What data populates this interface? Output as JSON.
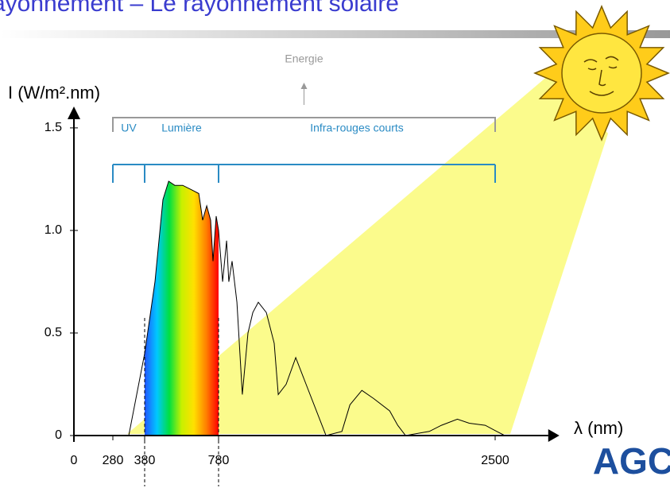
{
  "title": "ayonnement – Le rayonnement solaire",
  "logo": "AGC",
  "chart_data": {
    "type": "line",
    "x_label": "λ (nm)",
    "y_label": "I (W/m².nm)",
    "x": [
      330,
      355,
      380,
      436,
      479,
      510,
      543,
      586,
      630,
      673,
      694,
      716,
      737,
      750,
      767,
      780,
      805,
      830,
      844,
      864,
      894,
      928,
      963,
      993,
      1027,
      1077,
      1126,
      1151,
      1200,
      1260,
      1324,
      1448,
      1547,
      1597,
      1671,
      1745,
      1844,
      1894,
      1943,
      2091,
      2166,
      2265,
      2339,
      2438,
      2510,
      2560
    ],
    "series": [
      {
        "color": "#000000",
        "values": [
          0,
          0.2,
          0.4,
          0.75,
          1.15,
          1.24,
          1.22,
          1.22,
          1.2,
          1.18,
          1.05,
          1.12,
          1.05,
          0.85,
          1.07,
          1.0,
          0.75,
          0.95,
          0.75,
          0.85,
          0.65,
          0.2,
          0.5,
          0.6,
          0.65,
          0.6,
          0.45,
          0.2,
          0.25,
          0.38,
          0.25,
          0,
          0.02,
          0.15,
          0.22,
          0.18,
          0.12,
          0.05,
          0,
          0.02,
          0.05,
          0.08,
          0.06,
          0.05,
          0.02,
          0
        ]
      }
    ],
    "visible_fill_colors": [
      "#2255ff",
      "#00c8ff",
      "#00e040",
      "#c8f000",
      "#ffe000",
      "#ff8000",
      "#ff0000"
    ],
    "xlim": [
      0,
      2830
    ],
    "ylim": [
      0,
      1.55
    ],
    "xticks": [
      0,
      280,
      380,
      780,
      2500
    ],
    "yticks": [
      0,
      0.5,
      {
        "value": 1,
        "label": "1.0"
      },
      {
        "value": 1.5,
        "label": "1.5"
      }
    ],
    "energy": {
      "label": "Energie",
      "from": 280,
      "to": 2500,
      "color": "#999999"
    },
    "bands": [
      {
        "label": "UV",
        "from": 280,
        "to": 380,
        "color": "#2a8bc4"
      },
      {
        "label": "Lumière",
        "from": 380,
        "to": 780,
        "color": "#2a8bc4"
      },
      {
        "label": "Infra-rouges courts",
        "from": 780,
        "to": 2500,
        "color": "#2a8bc4"
      }
    ],
    "beam_color": "#fbfb8c"
  }
}
